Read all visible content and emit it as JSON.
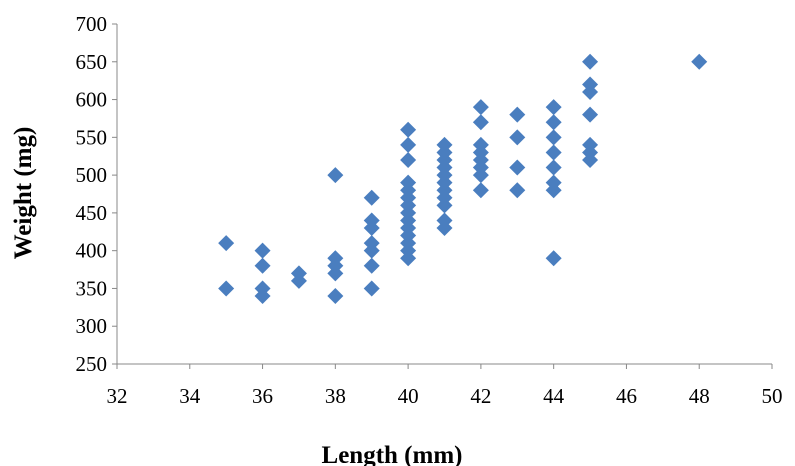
{
  "chart_data": {
    "type": "scatter",
    "title": "",
    "xlabel": "Length (mm)",
    "ylabel": "Weight (mg)",
    "xlim": [
      32,
      50
    ],
    "ylim": [
      250,
      700
    ],
    "x_ticks": [
      "32",
      "34",
      "36",
      "38",
      "40",
      "42",
      "44",
      "46",
      "48",
      "50"
    ],
    "y_ticks": [
      "250",
      "300",
      "350",
      "400",
      "450",
      "500",
      "550",
      "600",
      "650",
      "700"
    ],
    "grid": false,
    "legend": "none",
    "marker": "diamond",
    "marker_color": "#4a7ebf",
    "series": [
      {
        "points": [
          [
            35,
            410
          ],
          [
            35,
            350
          ],
          [
            36,
            400
          ],
          [
            36,
            380
          ],
          [
            36,
            350
          ],
          [
            36,
            340
          ],
          [
            37,
            370
          ],
          [
            37,
            360
          ],
          [
            38,
            500
          ],
          [
            38,
            390
          ],
          [
            38,
            380
          ],
          [
            38,
            370
          ],
          [
            38,
            340
          ],
          [
            39,
            470
          ],
          [
            39,
            440
          ],
          [
            39,
            430
          ],
          [
            39,
            410
          ],
          [
            39,
            400
          ],
          [
            39,
            380
          ],
          [
            39,
            350
          ],
          [
            40,
            560
          ],
          [
            40,
            540
          ],
          [
            40,
            520
          ],
          [
            40,
            490
          ],
          [
            40,
            480
          ],
          [
            40,
            470
          ],
          [
            40,
            460
          ],
          [
            40,
            450
          ],
          [
            40,
            440
          ],
          [
            40,
            430
          ],
          [
            40,
            420
          ],
          [
            40,
            410
          ],
          [
            40,
            400
          ],
          [
            40,
            390
          ],
          [
            41,
            540
          ],
          [
            41,
            530
          ],
          [
            41,
            520
          ],
          [
            41,
            510
          ],
          [
            41,
            500
          ],
          [
            41,
            490
          ],
          [
            41,
            480
          ],
          [
            41,
            470
          ],
          [
            41,
            460
          ],
          [
            41,
            440
          ],
          [
            41,
            430
          ],
          [
            42,
            590
          ],
          [
            42,
            570
          ],
          [
            42,
            540
          ],
          [
            42,
            530
          ],
          [
            42,
            520
          ],
          [
            42,
            510
          ],
          [
            42,
            500
          ],
          [
            42,
            480
          ],
          [
            43,
            580
          ],
          [
            43,
            550
          ],
          [
            43,
            510
          ],
          [
            43,
            480
          ],
          [
            44,
            590
          ],
          [
            44,
            570
          ],
          [
            44,
            550
          ],
          [
            44,
            530
          ],
          [
            44,
            510
          ],
          [
            44,
            490
          ],
          [
            44,
            480
          ],
          [
            44,
            390
          ],
          [
            45,
            650
          ],
          [
            45,
            620
          ],
          [
            45,
            610
          ],
          [
            45,
            580
          ],
          [
            45,
            540
          ],
          [
            45,
            530
          ],
          [
            45,
            520
          ],
          [
            48,
            650
          ]
        ]
      }
    ]
  }
}
